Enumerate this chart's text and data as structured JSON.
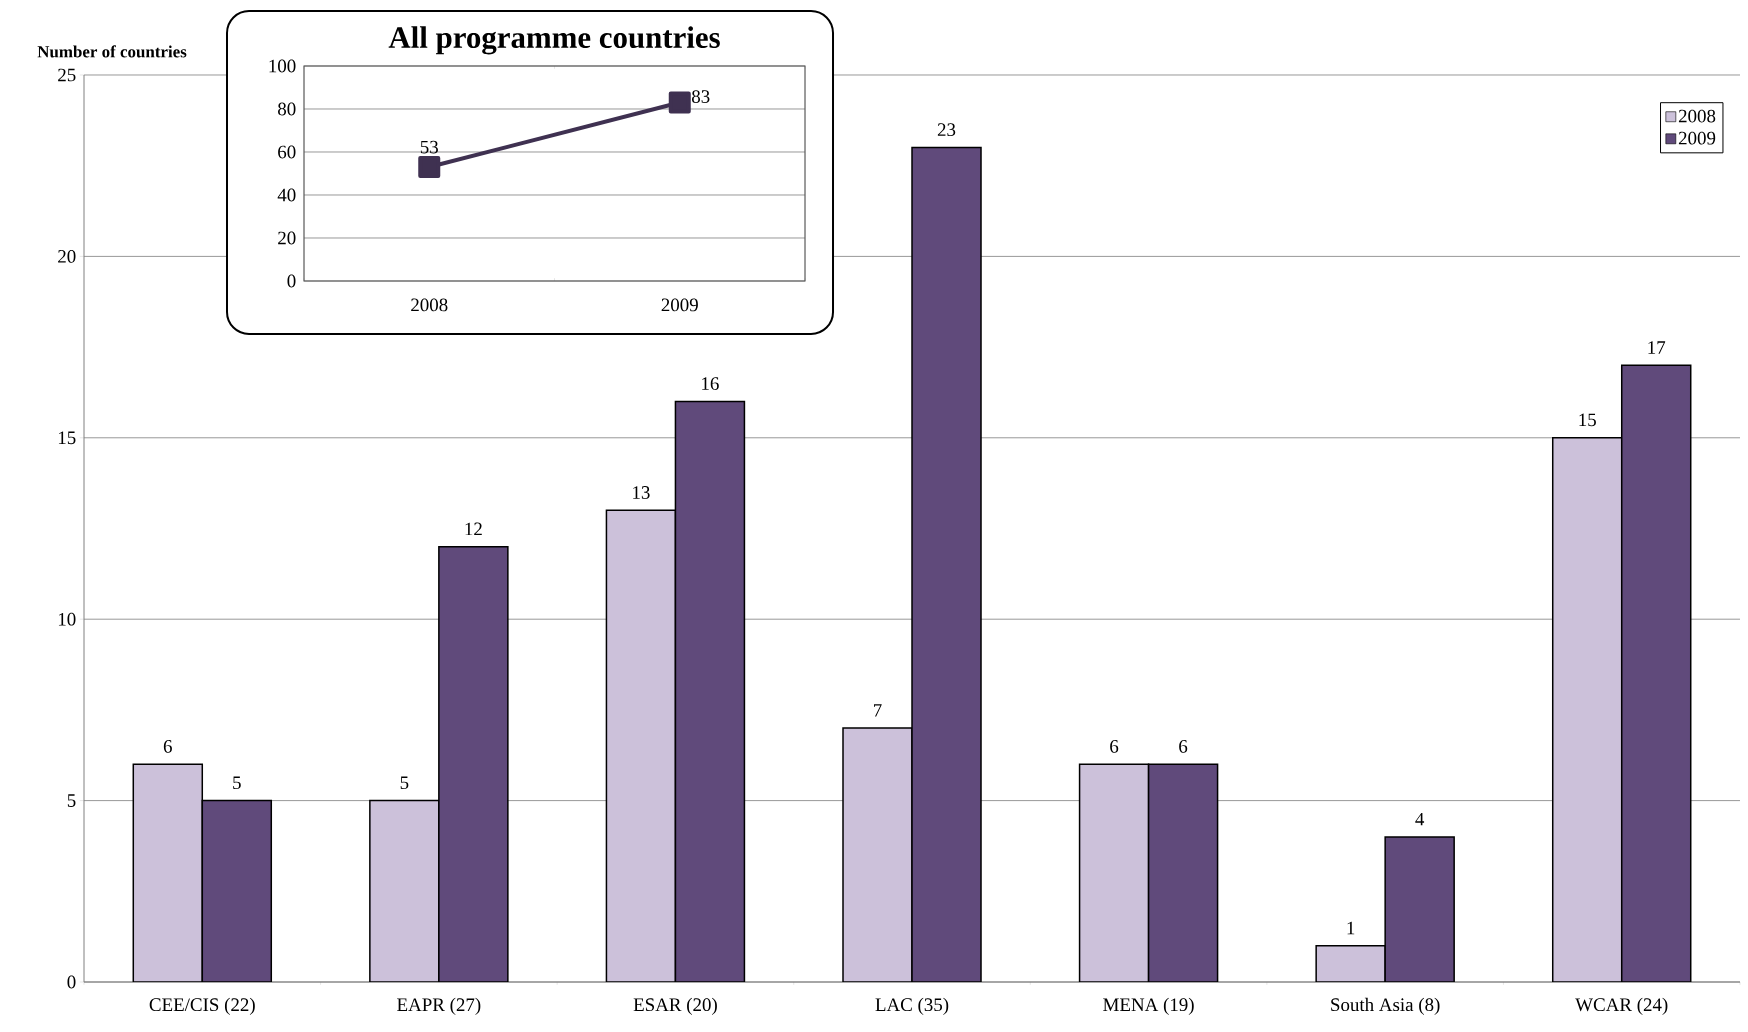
{
  "chart_data": [
    {
      "type": "bar",
      "ylabel": "Number of countries",
      "categories": [
        "CEE/CIS (22)",
        "EAPR (27)",
        "ESAR (20)",
        "LAC (35)",
        "MENA (19)",
        "South Asia (8)",
        "WCAR (24)"
      ],
      "series": [
        {
          "name": "2008",
          "color": "#ccc1da",
          "values": [
            6,
            5,
            13,
            7,
            6,
            1,
            15
          ]
        },
        {
          "name": "2009",
          "color": "#604a7b",
          "values": [
            5,
            12,
            16,
            23,
            6,
            4,
            17
          ]
        }
      ],
      "ylim": [
        0,
        25
      ],
      "yticks": [
        0,
        5,
        10,
        15,
        20,
        25
      ],
      "grid": "y",
      "legend": "top right",
      "data_labels": true
    },
    {
      "type": "line",
      "title": "All programme countries",
      "categories": [
        "2008",
        "2009"
      ],
      "series": [
        {
          "color": "#3f3151",
          "values": [
            53,
            83
          ]
        }
      ],
      "ylim": [
        0,
        100
      ],
      "yticks": [
        0,
        20,
        40,
        60,
        80,
        100
      ],
      "grid": "y",
      "marker": "square",
      "data_labels": true
    }
  ]
}
